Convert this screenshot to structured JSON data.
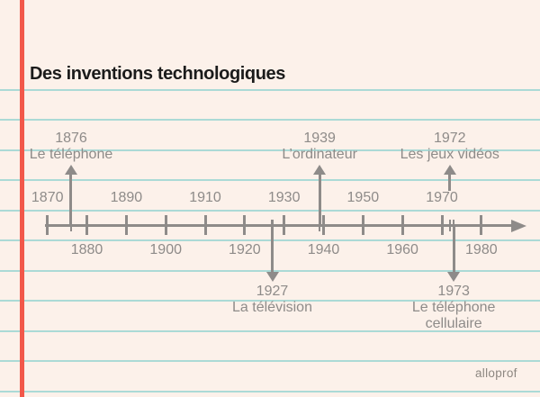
{
  "page": {
    "title": "Des inventions technologiques",
    "logo_text": "alloprof"
  },
  "colors": {
    "background": "#fcf1ea",
    "ruled_line": "#abdad6",
    "margin_line": "#f2584a",
    "timeline_gray": "#8e8b89",
    "title_ink": "#1b1b1b",
    "logo_gray": "#8d8781"
  },
  "timeline": {
    "start_year": 1870,
    "end_year": 1980,
    "major_tick_step": 10,
    "decade_labels_above": [
      "1870",
      "1890",
      "1910",
      "1930",
      "1950",
      "1970"
    ],
    "decade_labels_below": [
      "1880",
      "1900",
      "1920",
      "1940",
      "1960",
      "1980"
    ],
    "events": [
      {
        "year": "1876",
        "label": "Le téléphone",
        "side": "above"
      },
      {
        "year": "1927",
        "label": "La télévision",
        "side": "below"
      },
      {
        "year": "1939",
        "label": "L’ordinateur",
        "side": "above"
      },
      {
        "year": "1972",
        "label": "Les jeux vidéos",
        "side": "above"
      },
      {
        "year": "1973",
        "label": "Le téléphone cellulaire",
        "side": "below"
      }
    ]
  }
}
